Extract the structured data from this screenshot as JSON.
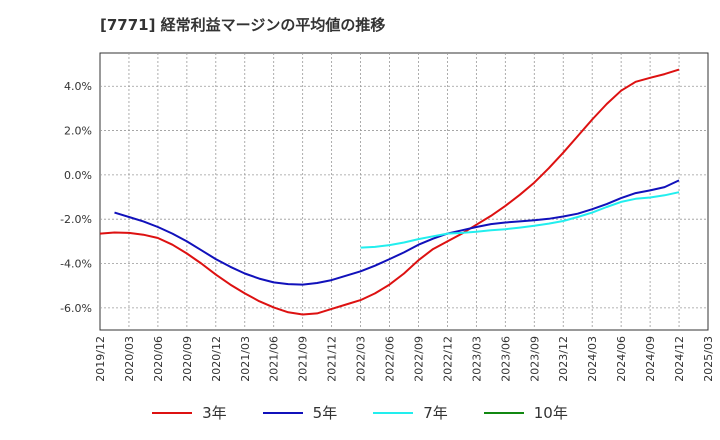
{
  "chart_data": {
    "type": "line",
    "title": "[7771]  経常利益マージンの平均値の推移",
    "xlabel": "",
    "ylabel": "",
    "x_ticks": [
      "2019/12",
      "2020/03",
      "2020/06",
      "2020/09",
      "2020/12",
      "2021/03",
      "2021/06",
      "2021/09",
      "2021/12",
      "2022/03",
      "2022/06",
      "2022/09",
      "2022/12",
      "2023/03",
      "2023/06",
      "2023/09",
      "2023/12",
      "2024/03",
      "2024/06",
      "2024/09",
      "2024/12",
      "2025/03"
    ],
    "y_ticks": [
      4.0,
      2.0,
      0.0,
      -2.0,
      -4.0,
      -6.0
    ],
    "ylim": [
      -7.0,
      5.5
    ],
    "y_unit": "%",
    "grid": true,
    "legend_position": "bottom",
    "series": [
      {
        "name": "3年",
        "color": "#dd1111",
        "points": [
          [
            0,
            -2.65
          ],
          [
            0.5,
            -2.6
          ],
          [
            1,
            -2.62
          ],
          [
            1.5,
            -2.7
          ],
          [
            2,
            -2.85
          ],
          [
            2.5,
            -3.15
          ],
          [
            3,
            -3.55
          ],
          [
            3.5,
            -4.0
          ],
          [
            4,
            -4.5
          ],
          [
            4.5,
            -4.95
          ],
          [
            5,
            -5.35
          ],
          [
            5.5,
            -5.7
          ],
          [
            6,
            -5.98
          ],
          [
            6.5,
            -6.2
          ],
          [
            7,
            -6.3
          ],
          [
            7.5,
            -6.25
          ],
          [
            8,
            -6.05
          ],
          [
            8.5,
            -5.85
          ],
          [
            9,
            -5.65
          ],
          [
            9.5,
            -5.35
          ],
          [
            10,
            -4.95
          ],
          [
            10.5,
            -4.45
          ],
          [
            11,
            -3.85
          ],
          [
            11.5,
            -3.35
          ],
          [
            12,
            -3.0
          ],
          [
            12.5,
            -2.65
          ],
          [
            13,
            -2.25
          ],
          [
            13.5,
            -1.85
          ],
          [
            14,
            -1.4
          ],
          [
            14.5,
            -0.9
          ],
          [
            15,
            -0.35
          ],
          [
            15.5,
            0.3
          ],
          [
            16,
            1.0
          ],
          [
            16.5,
            1.75
          ],
          [
            17,
            2.5
          ],
          [
            17.5,
            3.2
          ],
          [
            18,
            3.8
          ],
          [
            18.5,
            4.2
          ],
          [
            19,
            4.38
          ],
          [
            19.5,
            4.55
          ],
          [
            20,
            4.75
          ]
        ]
      },
      {
        "name": "5年",
        "color": "#1111bb",
        "points": [
          [
            0.5,
            -1.7
          ],
          [
            1,
            -1.9
          ],
          [
            1.5,
            -2.1
          ],
          [
            2,
            -2.35
          ],
          [
            2.5,
            -2.65
          ],
          [
            3,
            -3.0
          ],
          [
            3.5,
            -3.4
          ],
          [
            4,
            -3.8
          ],
          [
            4.5,
            -4.15
          ],
          [
            5,
            -4.45
          ],
          [
            5.5,
            -4.68
          ],
          [
            6,
            -4.85
          ],
          [
            6.5,
            -4.93
          ],
          [
            7,
            -4.95
          ],
          [
            7.5,
            -4.88
          ],
          [
            8,
            -4.75
          ],
          [
            8.5,
            -4.55
          ],
          [
            9,
            -4.35
          ],
          [
            9.5,
            -4.1
          ],
          [
            10,
            -3.8
          ],
          [
            10.5,
            -3.5
          ],
          [
            11,
            -3.15
          ],
          [
            11.5,
            -2.88
          ],
          [
            12,
            -2.65
          ],
          [
            12.5,
            -2.5
          ],
          [
            13,
            -2.35
          ],
          [
            13.5,
            -2.22
          ],
          [
            14,
            -2.15
          ],
          [
            14.5,
            -2.1
          ],
          [
            15,
            -2.05
          ],
          [
            15.5,
            -1.98
          ],
          [
            16,
            -1.88
          ],
          [
            16.5,
            -1.75
          ],
          [
            17,
            -1.55
          ],
          [
            17.5,
            -1.32
          ],
          [
            18,
            -1.05
          ],
          [
            18.5,
            -0.82
          ],
          [
            19,
            -0.7
          ],
          [
            19.5,
            -0.55
          ],
          [
            20,
            -0.25
          ]
        ]
      },
      {
        "name": "7年",
        "color": "#22eeee",
        "points": [
          [
            9,
            -3.28
          ],
          [
            9.5,
            -3.25
          ],
          [
            10,
            -3.17
          ],
          [
            10.5,
            -3.05
          ],
          [
            11,
            -2.9
          ],
          [
            11.5,
            -2.77
          ],
          [
            12,
            -2.65
          ],
          [
            12.5,
            -2.62
          ],
          [
            13,
            -2.57
          ],
          [
            13.5,
            -2.5
          ],
          [
            14,
            -2.45
          ],
          [
            14.5,
            -2.38
          ],
          [
            15,
            -2.3
          ],
          [
            15.5,
            -2.2
          ],
          [
            16,
            -2.08
          ],
          [
            16.5,
            -1.9
          ],
          [
            17,
            -1.7
          ],
          [
            17.5,
            -1.45
          ],
          [
            18,
            -1.22
          ],
          [
            18.5,
            -1.08
          ],
          [
            19,
            -1.02
          ],
          [
            19.5,
            -0.92
          ],
          [
            20,
            -0.78
          ]
        ]
      },
      {
        "name": "10年",
        "color": "#118811",
        "points": []
      }
    ]
  }
}
